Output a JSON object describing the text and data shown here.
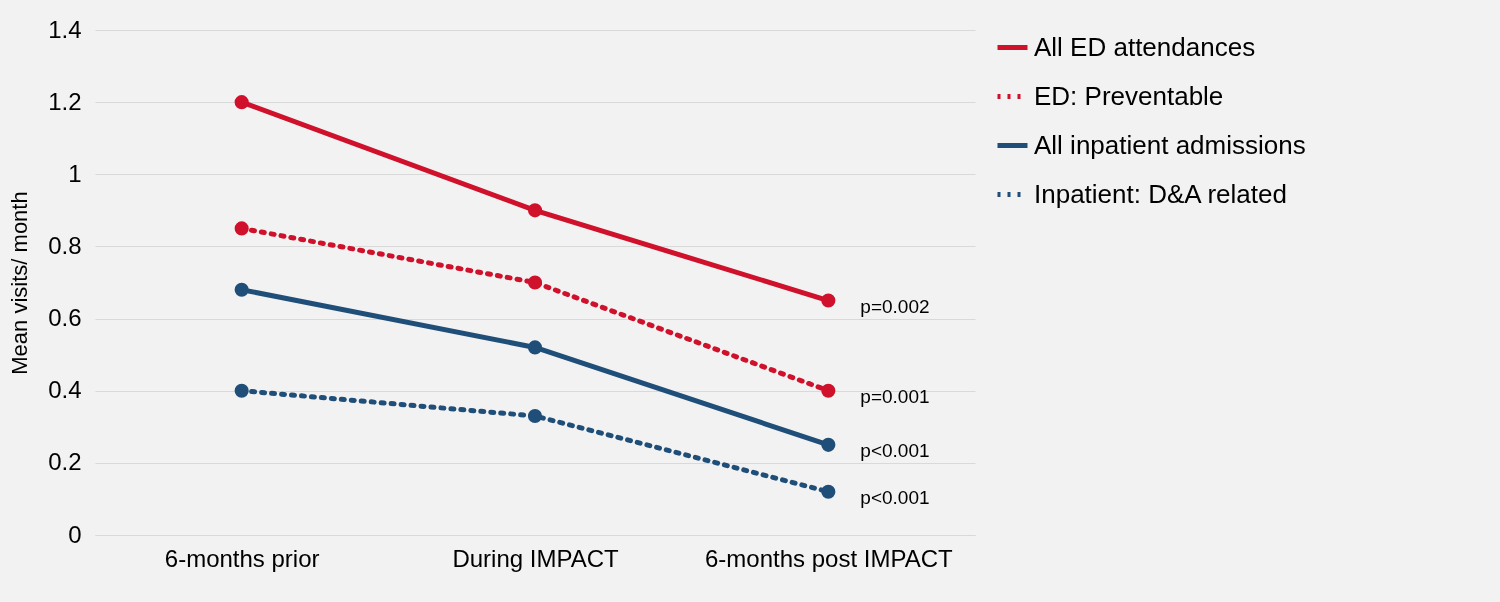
{
  "chart_data": {
    "type": "line",
    "ylabel": "Mean visits/ month",
    "categories": [
      "6-months prior",
      "During IMPACT",
      "6-months post IMPACT"
    ],
    "ylim": [
      0,
      1.4
    ],
    "yticks": [
      0,
      0.2,
      0.4,
      0.6,
      0.8,
      1,
      1.2,
      1.4
    ],
    "grid": "y",
    "legend": "right",
    "marker": "circle",
    "series": [
      {
        "name": "All ED attendances",
        "color": "#d0112b",
        "line_style": "solid",
        "values": [
          1.2,
          0.9,
          0.65
        ]
      },
      {
        "name": "ED: Preventable",
        "color": "#d0112b",
        "line_style": "dotted",
        "values": [
          0.85,
          0.7,
          0.4
        ]
      },
      {
        "name": "All inpatient admissions",
        "color": "#1f4e79",
        "line_style": "solid",
        "values": [
          0.68,
          0.52,
          0.25
        ]
      },
      {
        "name": "Inpatient: D&A related",
        "color": "#1f4e79",
        "line_style": "dotted",
        "values": [
          0.4,
          0.33,
          0.12
        ]
      }
    ],
    "annotations": [
      {
        "text": "p=0.002",
        "x": "6-months post IMPACT",
        "y": 0.65
      },
      {
        "text": "p=0.001",
        "x": "6-months post IMPACT",
        "y": 0.4
      },
      {
        "text": "p<0.001",
        "x": "6-months post IMPACT",
        "y": 0.25
      },
      {
        "text": "p<0.001",
        "x": "6-months post IMPACT",
        "y": 0.12
      }
    ]
  }
}
